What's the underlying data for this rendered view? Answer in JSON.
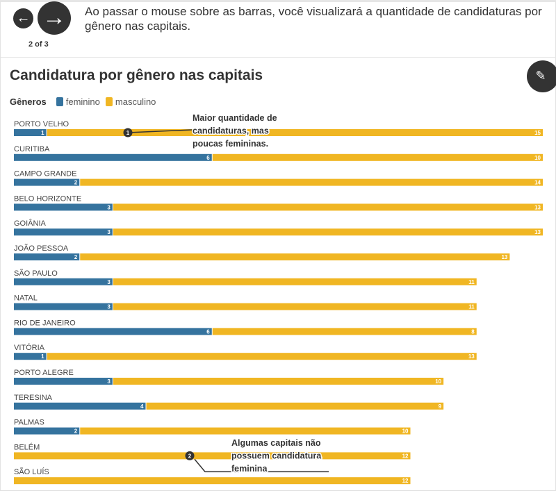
{
  "nav": {
    "prev_icon": "arrow-left-icon",
    "next_icon": "arrow-right-icon",
    "counter": "2 of 3",
    "description": "Ao passar o mouse sobre as barras, você visualizará a quantidade de candidaturas por gênero nas capitais."
  },
  "edit_icon": "pencil-icon",
  "chart_data": {
    "type": "bar",
    "orientation": "horizontal",
    "stacked": true,
    "title": "Candidatura por gênero nas capitais",
    "legend_title": "Gêneros",
    "legend_placement": "top-left",
    "colors": {
      "feminino": "#35739e",
      "masculino": "#f0b623"
    },
    "categories": [
      "PORTO VELHO",
      "CURITIBA",
      "CAMPO GRANDE",
      "BELO HORIZONTE",
      "GOIÂNIA",
      "JOÃO PESSOA",
      "SÃO PAULO",
      "NATAL",
      "RIO DE JANEIRO",
      "VITÓRIA",
      "PORTO ALEGRE",
      "TERESINA",
      "PALMAS",
      "BELÉM",
      "SÃO LUÍS"
    ],
    "series": [
      {
        "name": "feminino",
        "values": [
          1,
          6,
          2,
          3,
          3,
          2,
          3,
          3,
          6,
          1,
          3,
          4,
          2,
          0,
          0
        ]
      },
      {
        "name": "masculino",
        "values": [
          15,
          10,
          14,
          13,
          13,
          13,
          11,
          11,
          8,
          13,
          10,
          9,
          10,
          12,
          12
        ]
      }
    ],
    "xlim": [
      0,
      16
    ],
    "annotations": [
      {
        "number": "1",
        "category": "PORTO VELHO",
        "lines": [
          "Maior quantidade de",
          "candidaturas, mas",
          "poucas femininas."
        ]
      },
      {
        "number": "2",
        "category": "BELÉM",
        "lines": [
          "Algumas capitais não",
          "possuem candidatura",
          "feminina"
        ]
      }
    ]
  }
}
